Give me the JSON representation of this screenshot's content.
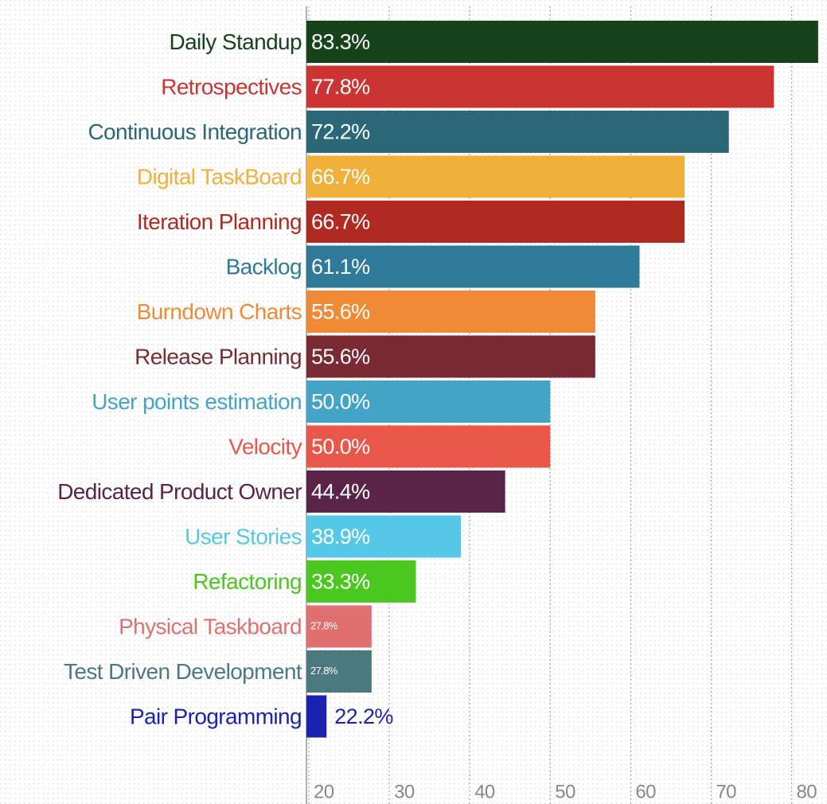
{
  "chart_data": {
    "type": "bar",
    "orientation": "horizontal",
    "categories": [
      "Daily Standup",
      "Retrospectives",
      "Continuous Integration",
      "Digital TaskBoard",
      "Iteration Planning",
      "Backlog",
      "Burndown Charts",
      "Release Planning",
      "User points estimation",
      "Velocity",
      "Dedicated Product Owner",
      "User Stories",
      "Refactoring",
      "Physical Taskboard",
      "Test Driven Development",
      "Pair Programming"
    ],
    "values": [
      83.3,
      77.8,
      72.2,
      66.7,
      66.7,
      61.1,
      55.6,
      55.6,
      50.0,
      50.0,
      44.4,
      38.9,
      33.3,
      27.8,
      27.8,
      22.2
    ],
    "value_labels": [
      "83.3%",
      "77.8%",
      "72.2%",
      "66.7%",
      "66.7%",
      "61.1%",
      "55.6%",
      "55.6%",
      "50.0%",
      "50.0%",
      "44.4%",
      "38.9%",
      "33.3%",
      "27.8%",
      "27.8%",
      "22.2%"
    ],
    "colors": [
      "#17431a",
      "#cc3434",
      "#2a6878",
      "#f0b03a",
      "#b02a22",
      "#2e7a98",
      "#f08a35",
      "#7a2a33",
      "#44a4c8",
      "#e8574a",
      "#5a2448",
      "#55c8e8",
      "#4ac820",
      "#e07070",
      "#4a7a80",
      "#1a22b0"
    ],
    "xlim": [
      19.7,
      84.4
    ],
    "xticks": [
      20,
      30,
      40,
      50,
      60,
      70,
      80
    ],
    "grid": true
  }
}
